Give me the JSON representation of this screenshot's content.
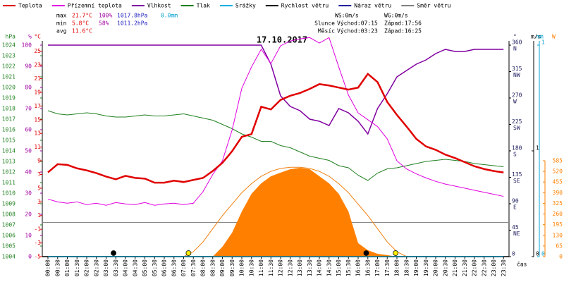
{
  "chart_data": {
    "type": "line",
    "title": "17.10.2017",
    "categories": [
      "00:00",
      "00:30",
      "01:00",
      "01:30",
      "02:00",
      "02:30",
      "03:00",
      "03:30",
      "04:00",
      "04:30",
      "05:00",
      "05:30",
      "06:00",
      "06:30",
      "07:00",
      "07:30",
      "08:00",
      "08:30",
      "09:00",
      "09:30",
      "10:00",
      "10:30",
      "11:00",
      "11:30",
      "12:00",
      "12:30",
      "13:00",
      "13:30",
      "14:00",
      "14:30",
      "15:00",
      "15:30",
      "16:00",
      "16:30",
      "17:00",
      "17:30",
      "18:00",
      "18:30",
      "19:00",
      "19:30",
      "20:00",
      "20:30",
      "21:00",
      "21:30",
      "22:00",
      "22:30",
      "23:00",
      "23:30"
    ],
    "x_label": "čas",
    "series": [
      {
        "name": "Teplota",
        "color": "#e00000",
        "axis": "temp",
        "width": 2.5,
        "values": [
          7.3,
          8.5,
          8.4,
          7.9,
          7.6,
          7.2,
          6.7,
          6.3,
          6.8,
          6.5,
          6.4,
          5.8,
          5.8,
          6.1,
          5.9,
          6.2,
          6.5,
          7.5,
          8.7,
          10.4,
          12.5,
          12.9,
          16.9,
          16.5,
          17.9,
          18.5,
          18.9,
          19.5,
          20.2,
          20.0,
          19.7,
          19.4,
          19.7,
          21.7,
          20.5,
          17.6,
          15.7,
          14.0,
          12.2,
          11.1,
          10.6,
          9.9,
          9.4,
          8.8,
          8.2,
          7.8,
          7.5,
          7.3
        ]
      },
      {
        "name": "Přízemní teplota",
        "color": "#e000e0",
        "axis": "temp",
        "width": 1,
        "values": [
          3.4,
          3.0,
          2.8,
          3.0,
          2.6,
          2.8,
          2.5,
          2.9,
          2.7,
          2.6,
          2.9,
          2.5,
          2.7,
          2.8,
          2.6,
          2.8,
          4.5,
          7.0,
          9.0,
          13.5,
          19.6,
          22.7,
          25.3,
          23.2,
          25.8,
          26.5,
          26.8,
          27.0,
          26.2,
          27.0,
          22.7,
          18.6,
          16.0,
          15.0,
          14.0,
          12.2,
          9.0,
          7.8,
          7.1,
          6.5,
          6.0,
          5.6,
          5.3,
          5.0,
          4.7,
          4.4,
          4.1,
          3.8
        ]
      },
      {
        "name": "Vlhkost",
        "color": "#8000a0",
        "axis": "pct",
        "width": 1.5,
        "values": [
          100,
          100,
          100,
          100,
          100,
          100,
          100,
          100,
          100,
          100,
          100,
          100,
          100,
          100,
          100,
          100,
          100,
          100,
          100,
          100,
          100,
          100,
          100,
          91,
          76,
          71,
          69,
          65,
          64,
          62,
          70,
          68,
          64,
          58,
          70,
          77,
          85,
          88,
          91,
          93,
          96,
          98,
          97,
          97,
          98,
          98,
          98,
          98
        ]
      },
      {
        "name": "Tlak",
        "color": "#208020",
        "axis": "hpa",
        "width": 1,
        "values": [
          1017.8,
          1017.5,
          1017.4,
          1017.5,
          1017.6,
          1017.5,
          1017.3,
          1017.2,
          1017.2,
          1017.3,
          1017.4,
          1017.3,
          1017.3,
          1017.4,
          1017.5,
          1017.3,
          1017.1,
          1016.9,
          1016.5,
          1016.1,
          1015.6,
          1015.3,
          1014.9,
          1014.9,
          1014.5,
          1014.3,
          1013.9,
          1013.5,
          1013.3,
          1013.1,
          1012.6,
          1012.4,
          1011.7,
          1011.2,
          1011.9,
          1012.3,
          1012.4,
          1012.6,
          1012.8,
          1013.0,
          1013.1,
          1013.2,
          1013.1,
          1013.0,
          1012.8,
          1012.7,
          1012.6,
          1012.5
        ]
      },
      {
        "name": "Srážky",
        "color": "#00b0e0",
        "axis": "mm",
        "width": 1,
        "values": [
          0,
          0,
          0,
          0,
          0,
          0,
          0,
          0,
          0,
          0,
          0,
          0,
          0,
          0,
          0,
          0,
          0,
          0,
          0,
          0,
          0,
          0,
          0,
          0,
          0,
          0,
          0,
          0,
          0,
          0,
          0,
          0,
          0,
          0,
          0,
          0,
          0,
          0,
          0,
          0,
          0,
          0,
          0,
          0,
          0,
          0,
          0,
          0
        ]
      },
      {
        "name": "Rychlost větru",
        "color": "#000000",
        "axis": "ms",
        "width": 1.5,
        "values": [
          0,
          0,
          0,
          0,
          0,
          0,
          0,
          0,
          0,
          0,
          0,
          0,
          0,
          0,
          0,
          0,
          0,
          0,
          0,
          0,
          0,
          0,
          0,
          0,
          0,
          0,
          0,
          0,
          0,
          0,
          0,
          0,
          0,
          0,
          0,
          0,
          0,
          0,
          0,
          0,
          0,
          0,
          0,
          0,
          0,
          0,
          0,
          0
        ]
      },
      {
        "name": "Náraz větru",
        "color": "#2020a0",
        "axis": "ms",
        "width": 1,
        "values": [
          0,
          0,
          0,
          0,
          0,
          0,
          0,
          0,
          0,
          0,
          0,
          0,
          0,
          0,
          0,
          0,
          0,
          0,
          0,
          0,
          0,
          0,
          0,
          0,
          0,
          0,
          0,
          0,
          0,
          0,
          0,
          0,
          0,
          0,
          0,
          0,
          0,
          0,
          0,
          0,
          0,
          0,
          0,
          0,
          0,
          0,
          0,
          0
        ]
      },
      {
        "name": "Směr větru",
        "color": "#808080",
        "axis": "dir",
        "width": 1
      }
    ],
    "solar": {
      "color": "#ff8000",
      "axis": "solar",
      "values": [
        null,
        null,
        null,
        null,
        null,
        null,
        null,
        null,
        null,
        null,
        null,
        null,
        null,
        null,
        null,
        null,
        null,
        0,
        60,
        146,
        275,
        383,
        447,
        490,
        512,
        533,
        542,
        533,
        490,
        447,
        383,
        275,
        82,
        39,
        17,
        9,
        0,
        null,
        null,
        null,
        null,
        null,
        null,
        null,
        null,
        null,
        null,
        null
      ]
    },
    "solar_clear": {
      "color": "#f08010",
      "axis": "solar",
      "values": [
        null,
        null,
        null,
        null,
        null,
        null,
        null,
        null,
        null,
        null,
        null,
        null,
        null,
        null,
        0,
        30,
        90,
        170,
        250,
        320,
        390,
        445,
        490,
        520,
        538,
        545,
        545,
        538,
        520,
        490,
        445,
        390,
        320,
        250,
        170,
        90,
        30,
        0,
        null,
        null,
        null,
        null,
        null,
        null,
        null,
        null,
        null,
        null
      ]
    },
    "axes": {
      "hpa": {
        "label": "hPa",
        "color": "#208020",
        "lim": [
          1004,
          1024
        ],
        "ticks": [
          1004,
          1005,
          1006,
          1007,
          1008,
          1009,
          1010,
          1011,
          1012,
          1013,
          1014,
          1015,
          1016,
          1017,
          1018,
          1019,
          1020,
          1021,
          1022,
          1023,
          1024
        ]
      },
      "pct": {
        "label": "%",
        "color": "#a000a0",
        "lim": [
          0,
          100
        ],
        "ticks": [
          0,
          10,
          20,
          30,
          40,
          50,
          60,
          70,
          80,
          90,
          100
        ]
      },
      "temp": {
        "label": "°C",
        "color": "#e00000",
        "lim": [
          -5,
          25.9
        ],
        "ticks": [
          -5,
          -3,
          -1,
          1,
          3,
          5,
          7,
          9,
          11,
          13,
          15,
          17,
          19,
          21,
          23,
          25
        ],
        "reference_line": 0
      },
      "dir": {
        "label": "°",
        "color": "#202060",
        "lim": [
          0,
          360
        ],
        "ticks": [
          0,
          45,
          90,
          135,
          180,
          225,
          270,
          315,
          360
        ],
        "compass": [
          null,
          "NE",
          "E",
          "SE",
          "S",
          "SW",
          "W",
          "NW",
          "N"
        ]
      },
      "ms": {
        "label": "m/s",
        "color": "#000000",
        "lim": [
          0,
          2
        ],
        "ticks": [
          0,
          1
        ]
      },
      "mm": {
        "label": "mm",
        "color": "#00a0d0",
        "lim": [
          0,
          1
        ],
        "ticks": [
          0,
          1
        ]
      },
      "solar": {
        "label": "W",
        "color": "#ff8000",
        "lim": [
          0,
          1290
        ],
        "ticks": [
          0,
          65,
          130,
          195,
          260,
          325,
          390,
          455,
          520,
          585
        ]
      }
    },
    "stats": [
      {
        "label": "max",
        "temp": "21.7°C",
        "pct": "100%",
        "hpa": "1017.8hPa",
        "mm": "0.0mm"
      },
      {
        "label": "min",
        "temp": "5.8°C",
        "pct": "58%",
        "hpa": "1011.2hPa"
      },
      {
        "label": "avg",
        "temp": "11.6°C"
      }
    ],
    "wind": {
      "ws": "WS:0m/s",
      "wg": "WG:0m/s"
    },
    "sun": {
      "name": "Slunce",
      "rise_label": "Východ:",
      "rise": "07:15",
      "set_label": "Západ:",
      "set": "17:56",
      "color": "#ffee00"
    },
    "moon": {
      "name": "Měsíc",
      "rise_label": "Východ:",
      "rise": "03:23",
      "set_label": "Západ:",
      "set": "16:25",
      "color": "#000000"
    }
  }
}
